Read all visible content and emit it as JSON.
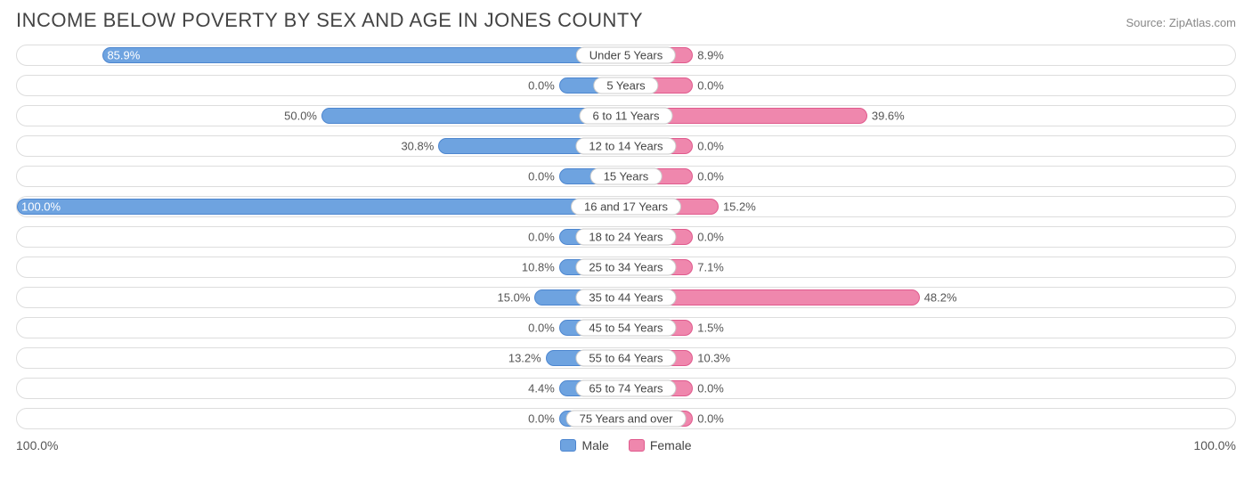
{
  "title": "INCOME BELOW POVERTY BY SEX AND AGE IN JONES COUNTY",
  "source": "Source: ZipAtlas.com",
  "chart": {
    "type": "diverging-bar",
    "axis_max": 100.0,
    "axis_left_label": "100.0%",
    "axis_right_label": "100.0%",
    "male": {
      "fill": "#6ea3e0",
      "border": "#4d86cf",
      "legend_label": "Male",
      "min_bar_pct": 11.0
    },
    "female": {
      "fill": "#ef87ad",
      "border": "#e05a8d",
      "legend_label": "Female",
      "min_bar_pct": 11.0
    },
    "row_border_color": "#dddddd",
    "background_color": "#ffffff",
    "label_fontsize": 13,
    "title_fontsize": 22,
    "title_color": "#444444",
    "rows": [
      {
        "category": "Under 5 Years",
        "male": 85.9,
        "female": 8.9
      },
      {
        "category": "5 Years",
        "male": 0.0,
        "female": 0.0
      },
      {
        "category": "6 to 11 Years",
        "male": 50.0,
        "female": 39.6
      },
      {
        "category": "12 to 14 Years",
        "male": 30.8,
        "female": 0.0
      },
      {
        "category": "15 Years",
        "male": 0.0,
        "female": 0.0
      },
      {
        "category": "16 and 17 Years",
        "male": 100.0,
        "female": 15.2
      },
      {
        "category": "18 to 24 Years",
        "male": 0.0,
        "female": 0.0
      },
      {
        "category": "25 to 34 Years",
        "male": 10.8,
        "female": 7.1
      },
      {
        "category": "35 to 44 Years",
        "male": 15.0,
        "female": 48.2
      },
      {
        "category": "45 to 54 Years",
        "male": 0.0,
        "female": 1.5
      },
      {
        "category": "55 to 64 Years",
        "male": 13.2,
        "female": 10.3
      },
      {
        "category": "65 to 74 Years",
        "male": 4.4,
        "female": 0.0
      },
      {
        "category": "75 Years and over",
        "male": 0.0,
        "female": 0.0
      }
    ]
  }
}
